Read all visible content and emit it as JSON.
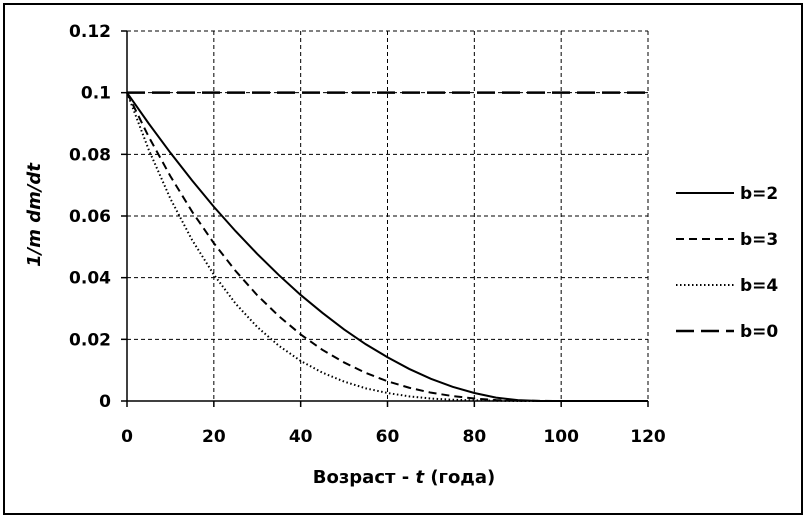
{
  "chart_data": {
    "type": "line",
    "title": "",
    "xlabel": "Возраст - t (года)",
    "xlabel_main": "Возраст - ",
    "xlabel_var": "t",
    "xlabel_tail": " (года)",
    "ylabel": "1/m dm/dt",
    "xlim": [
      0,
      120
    ],
    "ylim": [
      0,
      0.12
    ],
    "x_ticks": [
      0,
      20,
      40,
      60,
      80,
      100,
      120
    ],
    "y_ticks": [
      0,
      0.02,
      0.04,
      0.06,
      0.08,
      0.1,
      0.12
    ],
    "x_tick_labels": [
      "0",
      "20",
      "40",
      "60",
      "80",
      "100",
      "120"
    ],
    "y_tick_labels": [
      "0",
      "0.02",
      "0.04",
      "0.06",
      "0.08",
      "0.1",
      "0.12"
    ],
    "grid": true,
    "legend_position": "right",
    "series": [
      {
        "name": "b=2",
        "style": "solid",
        "x": [
          0,
          5,
          10,
          15,
          20,
          25,
          30,
          35,
          40,
          45,
          50,
          55,
          60,
          65,
          70,
          75,
          80,
          85,
          90,
          95,
          100,
          110,
          120
        ],
        "y": [
          0.1,
          0.09,
          0.0805,
          0.0715,
          0.063,
          0.0551,
          0.0477,
          0.0408,
          0.0344,
          0.0286,
          0.0232,
          0.0184,
          0.0142,
          0.0104,
          0.0072,
          0.0046,
          0.0026,
          0.0011,
          0.0003,
          0.0,
          0.0,
          0.0,
          0.0
        ]
      },
      {
        "name": "b=3",
        "style": "dashed",
        "x": [
          0,
          5,
          10,
          15,
          20,
          25,
          30,
          35,
          40,
          45,
          50,
          55,
          60,
          65,
          70,
          75,
          80,
          85,
          90,
          100,
          110,
          120
        ],
        "y": [
          0.1,
          0.0857,
          0.0729,
          0.0614,
          0.0512,
          0.0422,
          0.0343,
          0.0275,
          0.0216,
          0.0166,
          0.0125,
          0.0091,
          0.0064,
          0.0043,
          0.0027,
          0.0016,
          0.0008,
          0.0003,
          0.0001,
          0.0,
          0.0,
          0.0
        ]
      },
      {
        "name": "b=4",
        "style": "dotted",
        "x": [
          0,
          5,
          10,
          15,
          20,
          25,
          30,
          35,
          40,
          45,
          50,
          55,
          60,
          65,
          70,
          75,
          80,
          90,
          100,
          110,
          120
        ],
        "y": [
          0.1,
          0.0815,
          0.0656,
          0.0522,
          0.041,
          0.0316,
          0.024,
          0.0179,
          0.013,
          0.0092,
          0.0063,
          0.0041,
          0.0026,
          0.0015,
          0.0008,
          0.0004,
          0.0002,
          0.0,
          0.0,
          0.0,
          0.0
        ]
      },
      {
        "name": "b=0",
        "style": "long-dash",
        "x": [
          0,
          120
        ],
        "y": [
          0.1,
          0.1
        ]
      }
    ]
  }
}
